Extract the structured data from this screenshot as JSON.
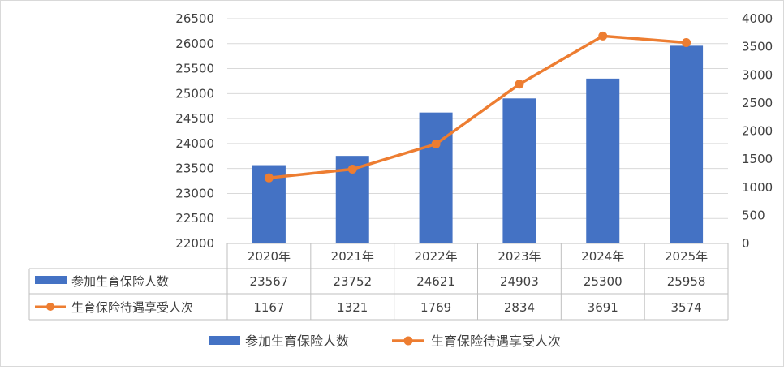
{
  "chart_data": {
    "type": "bar",
    "title": "",
    "categories": [
      "2020年",
      "2021年",
      "2022年",
      "2023年",
      "2024年",
      "2025年"
    ],
    "series": [
      {
        "name": "参加生育保险人数",
        "type": "bar",
        "axis": "left",
        "color": "#4472C4",
        "values": [
          23567,
          23752,
          24621,
          24903,
          25300,
          25958
        ]
      },
      {
        "name": "生育保险待遇享受人次",
        "type": "line",
        "axis": "right",
        "color": "#ED7D31",
        "values": [
          1167,
          1321,
          1769,
          2834,
          3691,
          3574
        ]
      }
    ],
    "y_left": {
      "min": 22000,
      "max": 26500,
      "step": 500
    },
    "y_right": {
      "min": 0,
      "max": 4000,
      "step": 500
    },
    "grid": true,
    "data_table": true,
    "legend_position": "bottom"
  }
}
